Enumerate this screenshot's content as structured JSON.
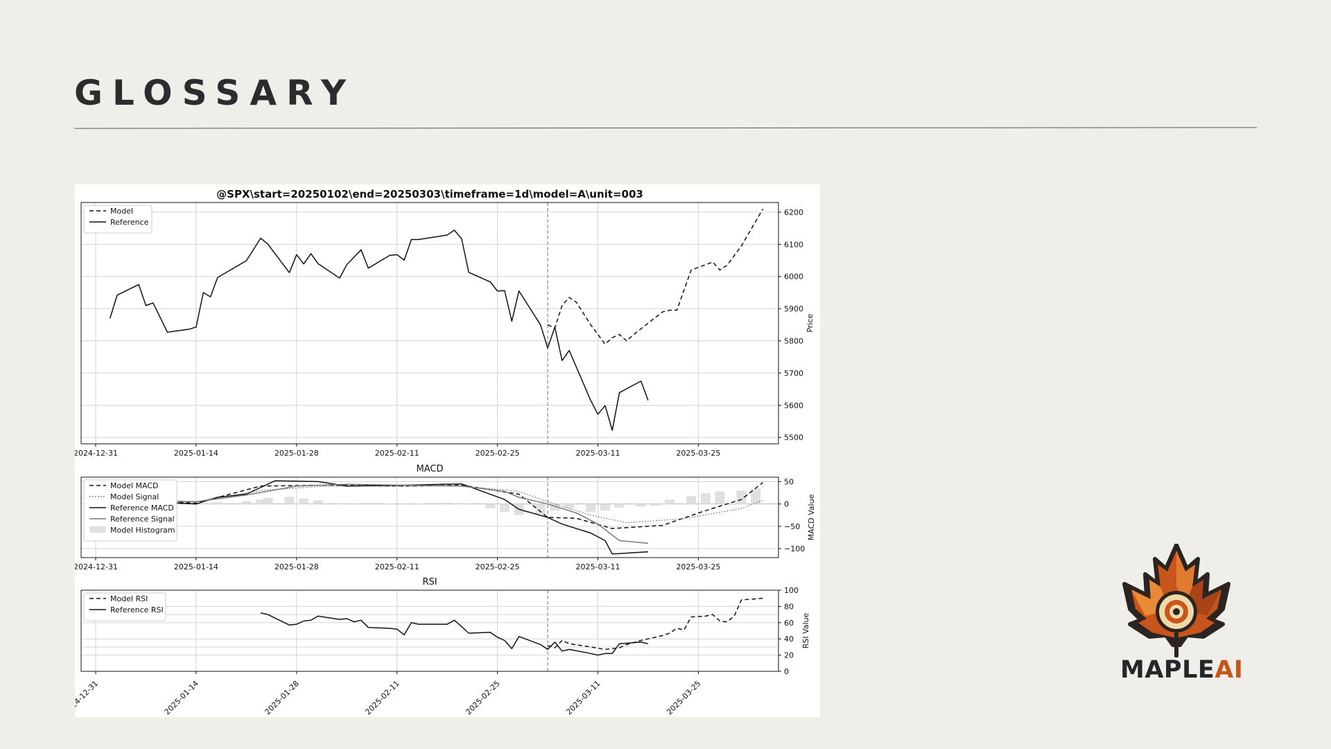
{
  "slide": {
    "title": "GLOSSARY"
  },
  "brand": {
    "name_part1": "MAPLE",
    "name_part2": "AI",
    "accent": "#c8561c",
    "dark": "#24272a"
  },
  "chart_data": {
    "type": "line",
    "title": "@SPX\\start=20250102\\end=20250303\\timeframe=1d\\model=A\\unit=003",
    "x_tick_labels": [
      "2024-12-31",
      "2025-01-14",
      "2025-01-28",
      "2025-02-11",
      "2025-02-25",
      "2025-03-11",
      "2025-03-25"
    ],
    "split_date": "2025-03-04",
    "grid": true,
    "price": {
      "ylabel": "Price",
      "ylim": [
        5480,
        6230
      ],
      "yticks": [
        5500,
        5600,
        5700,
        5800,
        5900,
        6000,
        6100,
        6200
      ],
      "legend": {
        "placement": "upper-left",
        "entries": [
          "Model",
          "Reference"
        ]
      },
      "series": [
        {
          "name": "Model",
          "style": "dashed",
          "points": [
            [
              "2025-03-04",
              5850
            ],
            [
              "2025-03-05",
              5840
            ],
            [
              "2025-03-06",
              5910
            ],
            [
              "2025-03-07",
              5935
            ],
            [
              "2025-03-08",
              5920
            ],
            [
              "2025-03-10",
              5850
            ],
            [
              "2025-03-12",
              5790
            ],
            [
              "2025-03-13",
              5810
            ],
            [
              "2025-03-14",
              5820
            ],
            [
              "2025-03-15",
              5800
            ],
            [
              "2025-03-16",
              5820
            ],
            [
              "2025-03-18",
              5855
            ],
            [
              "2025-03-20",
              5890
            ],
            [
              "2025-03-21",
              5895
            ],
            [
              "2025-03-22",
              5895
            ],
            [
              "2025-03-24",
              6020
            ],
            [
              "2025-03-27",
              6045
            ],
            [
              "2025-03-28",
              6020
            ],
            [
              "2025-03-29",
              6035
            ],
            [
              "2025-03-31",
              6095
            ],
            [
              "2025-04-03",
              6210
            ]
          ]
        },
        {
          "name": "Reference",
          "style": "solid",
          "points": [
            [
              "2025-01-02",
              5870
            ],
            [
              "2025-01-03",
              5942
            ],
            [
              "2025-01-06",
              5975
            ],
            [
              "2025-01-07",
              5910
            ],
            [
              "2025-01-08",
              5918
            ],
            [
              "2025-01-10",
              5827
            ],
            [
              "2025-01-13",
              5836
            ],
            [
              "2025-01-14",
              5843
            ],
            [
              "2025-01-15",
              5950
            ],
            [
              "2025-01-16",
              5937
            ],
            [
              "2025-01-17",
              5997
            ],
            [
              "2025-01-21",
              6049
            ],
            [
              "2025-01-23",
              6119
            ],
            [
              "2025-01-24",
              6101
            ],
            [
              "2025-01-27",
              6012
            ],
            [
              "2025-01-28",
              6068
            ],
            [
              "2025-01-29",
              6039
            ],
            [
              "2025-01-30",
              6071
            ],
            [
              "2025-01-31",
              6040
            ],
            [
              "2025-02-03",
              5995
            ],
            [
              "2025-02-04",
              6037
            ],
            [
              "2025-02-06",
              6083
            ],
            [
              "2025-02-07",
              6026
            ],
            [
              "2025-02-10",
              6066
            ],
            [
              "2025-02-11",
              6068
            ],
            [
              "2025-02-12",
              6051
            ],
            [
              "2025-02-13",
              6115
            ],
            [
              "2025-02-14",
              6115
            ],
            [
              "2025-02-18",
              6129
            ],
            [
              "2025-02-19",
              6144
            ],
            [
              "2025-02-20",
              6117
            ],
            [
              "2025-02-21",
              6013
            ],
            [
              "2025-02-24",
              5983
            ],
            [
              "2025-02-25",
              5955
            ],
            [
              "2025-02-26",
              5956
            ],
            [
              "2025-02-27",
              5861
            ],
            [
              "2025-02-28",
              5955
            ],
            [
              "2025-03-03",
              5850
            ],
            [
              "2025-03-04",
              5778
            ],
            [
              "2025-03-05",
              5843
            ],
            [
              "2025-03-06",
              5739
            ],
            [
              "2025-03-07",
              5770
            ],
            [
              "2025-03-10",
              5615
            ],
            [
              "2025-03-11",
              5572
            ],
            [
              "2025-03-12",
              5599
            ],
            [
              "2025-03-13",
              5522
            ],
            [
              "2025-03-14",
              5639
            ],
            [
              "2025-03-17",
              5675
            ],
            [
              "2025-03-18",
              5615
            ]
          ]
        }
      ]
    },
    "macd": {
      "title": "MACD",
      "ylabel": "MACD Value",
      "ylim": [
        -120,
        60
      ],
      "yticks": [
        50,
        0,
        -50,
        -100
      ],
      "legend": {
        "placement": "upper-left",
        "entries": [
          "Model MACD",
          "Model Signal",
          "Reference MACD",
          "Reference Signal",
          "Model Histogram"
        ]
      },
      "series": [
        {
          "name": "Model MACD",
          "style": "dashed",
          "points": [
            [
              "2025-01-02",
              10
            ],
            [
              "2025-01-14",
              2
            ],
            [
              "2025-01-23",
              40
            ],
            [
              "2025-02-01",
              42
            ],
            [
              "2025-02-12",
              40
            ],
            [
              "2025-02-20",
              42
            ],
            [
              "2025-02-28",
              22
            ],
            [
              "2025-03-04",
              -30
            ],
            [
              "2025-03-08",
              -32
            ],
            [
              "2025-03-13",
              -55
            ],
            [
              "2025-03-20",
              -48
            ],
            [
              "2025-03-26",
              -15
            ],
            [
              "2025-03-31",
              10
            ],
            [
              "2025-04-03",
              48
            ]
          ]
        },
        {
          "name": "Model Signal",
          "style": "dotted",
          "points": [
            [
              "2025-01-02",
              10
            ],
            [
              "2025-01-14",
              5
            ],
            [
              "2025-01-23",
              30
            ],
            [
              "2025-02-01",
              40
            ],
            [
              "2025-02-12",
              40
            ],
            [
              "2025-02-20",
              40
            ],
            [
              "2025-02-28",
              28
            ],
            [
              "2025-03-04",
              5
            ],
            [
              "2025-03-10",
              -25
            ],
            [
              "2025-03-15",
              -42
            ],
            [
              "2025-03-23",
              -33
            ],
            [
              "2025-03-31",
              -10
            ],
            [
              "2025-04-03",
              8
            ]
          ]
        },
        {
          "name": "Reference MACD",
          "style": "solid",
          "points": [
            [
              "2025-01-02",
              10
            ],
            [
              "2025-01-14",
              0
            ],
            [
              "2025-01-17",
              15
            ],
            [
              "2025-01-21",
              22
            ],
            [
              "2025-01-25",
              52
            ],
            [
              "2025-01-31",
              50
            ],
            [
              "2025-02-04",
              40
            ],
            [
              "2025-02-12",
              42
            ],
            [
              "2025-02-20",
              45
            ],
            [
              "2025-02-26",
              10
            ],
            [
              "2025-02-28",
              -12
            ],
            [
              "2025-03-04",
              -30
            ],
            [
              "2025-03-06",
              -45
            ],
            [
              "2025-03-10",
              -65
            ],
            [
              "2025-03-12",
              -82
            ],
            [
              "2025-03-13",
              -112
            ],
            [
              "2025-03-18",
              -107
            ]
          ]
        },
        {
          "name": "Reference Signal",
          "style": "solid",
          "points": [
            [
              "2025-01-02",
              10
            ],
            [
              "2025-01-14",
              5
            ],
            [
              "2025-01-21",
              20
            ],
            [
              "2025-01-28",
              40
            ],
            [
              "2025-02-04",
              44
            ],
            [
              "2025-02-12",
              42
            ],
            [
              "2025-02-20",
              40
            ],
            [
              "2025-02-26",
              28
            ],
            [
              "2025-02-28",
              15
            ],
            [
              "2025-03-04",
              0
            ],
            [
              "2025-03-08",
              -20
            ],
            [
              "2025-03-11",
              -45
            ],
            [
              "2025-03-14",
              -82
            ],
            [
              "2025-03-18",
              -88
            ]
          ]
        }
      ],
      "histogram": [
        [
          "2025-01-08",
          5
        ],
        [
          "2025-01-10",
          4
        ],
        [
          "2025-01-13",
          3
        ],
        [
          "2025-01-15",
          2
        ],
        [
          "2025-01-17",
          4
        ],
        [
          "2025-01-21",
          6
        ],
        [
          "2025-01-23",
          10
        ],
        [
          "2025-01-24",
          14
        ],
        [
          "2025-01-27",
          16
        ],
        [
          "2025-01-29",
          12
        ],
        [
          "2025-01-31",
          8
        ],
        [
          "2025-02-03",
          2
        ],
        [
          "2025-02-05",
          -1
        ],
        [
          "2025-02-10",
          1
        ],
        [
          "2025-02-12",
          -1
        ],
        [
          "2025-02-14",
          1
        ],
        [
          "2025-02-18",
          3
        ],
        [
          "2025-02-20",
          2
        ],
        [
          "2025-02-24",
          -10
        ],
        [
          "2025-02-26",
          -18
        ],
        [
          "2025-02-28",
          -25
        ],
        [
          "2025-03-03",
          -22
        ],
        [
          "2025-03-05",
          -15
        ],
        [
          "2025-03-07",
          -10
        ],
        [
          "2025-03-10",
          -18
        ],
        [
          "2025-03-12",
          -15
        ],
        [
          "2025-03-14",
          -8
        ],
        [
          "2025-03-17",
          -6
        ],
        [
          "2025-03-19",
          -4
        ],
        [
          "2025-03-21",
          10
        ],
        [
          "2025-03-24",
          18
        ],
        [
          "2025-03-26",
          24
        ],
        [
          "2025-03-28",
          28
        ],
        [
          "2025-03-31",
          30
        ],
        [
          "2025-04-02",
          35
        ]
      ]
    },
    "rsi": {
      "title": "RSI",
      "ylabel": "RSI Value",
      "ylim": [
        0,
        100
      ],
      "yticks": [
        0,
        20,
        40,
        60,
        80,
        100
      ],
      "legend": {
        "placement": "upper-left",
        "entries": [
          "Model RSI",
          "Reference RSI"
        ]
      },
      "series": [
        {
          "name": "Model RSI",
          "style": "dashed",
          "points": [
            [
              "2025-03-04",
              32
            ],
            [
              "2025-03-05",
              29
            ],
            [
              "2025-03-06",
              38
            ],
            [
              "2025-03-07",
              34
            ],
            [
              "2025-03-10",
              30
            ],
            [
              "2025-03-12",
              27
            ],
            [
              "2025-03-14",
              29
            ],
            [
              "2025-03-15",
              33
            ],
            [
              "2025-03-17",
              38
            ],
            [
              "2025-03-20",
              44
            ],
            [
              "2025-03-21",
              47
            ],
            [
              "2025-03-22",
              53
            ],
            [
              "2025-03-23",
              51
            ],
            [
              "2025-03-24",
              67
            ],
            [
              "2025-03-26",
              68
            ],
            [
              "2025-03-27",
              70
            ],
            [
              "2025-03-28",
              62
            ],
            [
              "2025-03-29",
              61
            ],
            [
              "2025-03-30",
              68
            ],
            [
              "2025-03-31",
              88
            ],
            [
              "2025-04-03",
              90
            ]
          ]
        },
        {
          "name": "Reference RSI",
          "style": "solid",
          "points": [
            [
              "2025-01-23",
              72
            ],
            [
              "2025-01-24",
              70
            ],
            [
              "2025-01-27",
              57
            ],
            [
              "2025-01-28",
              58
            ],
            [
              "2025-01-29",
              62
            ],
            [
              "2025-01-30",
              63
            ],
            [
              "2025-01-31",
              68
            ],
            [
              "2025-02-03",
              64
            ],
            [
              "2025-02-04",
              65
            ],
            [
              "2025-02-05",
              61
            ],
            [
              "2025-02-06",
              63
            ],
            [
              "2025-02-07",
              54
            ],
            [
              "2025-02-10",
              53
            ],
            [
              "2025-02-11",
              52
            ],
            [
              "2025-02-12",
              45
            ],
            [
              "2025-02-13",
              60
            ],
            [
              "2025-02-14",
              58
            ],
            [
              "2025-02-18",
              58
            ],
            [
              "2025-02-19",
              63
            ],
            [
              "2025-02-20",
              55
            ],
            [
              "2025-02-21",
              47
            ],
            [
              "2025-02-24",
              48
            ],
            [
              "2025-02-25",
              42
            ],
            [
              "2025-02-26",
              38
            ],
            [
              "2025-02-27",
              28
            ],
            [
              "2025-02-28",
              43
            ],
            [
              "2025-03-03",
              33
            ],
            [
              "2025-03-04",
              27
            ],
            [
              "2025-03-05",
              36
            ],
            [
              "2025-03-06",
              25
            ],
            [
              "2025-03-07",
              27
            ],
            [
              "2025-03-10",
              22
            ],
            [
              "2025-03-11",
              20
            ],
            [
              "2025-03-12",
              22
            ],
            [
              "2025-03-13",
              22
            ],
            [
              "2025-03-14",
              34
            ],
            [
              "2025-03-17",
              36
            ],
            [
              "2025-03-18",
              34
            ]
          ]
        }
      ]
    }
  }
}
